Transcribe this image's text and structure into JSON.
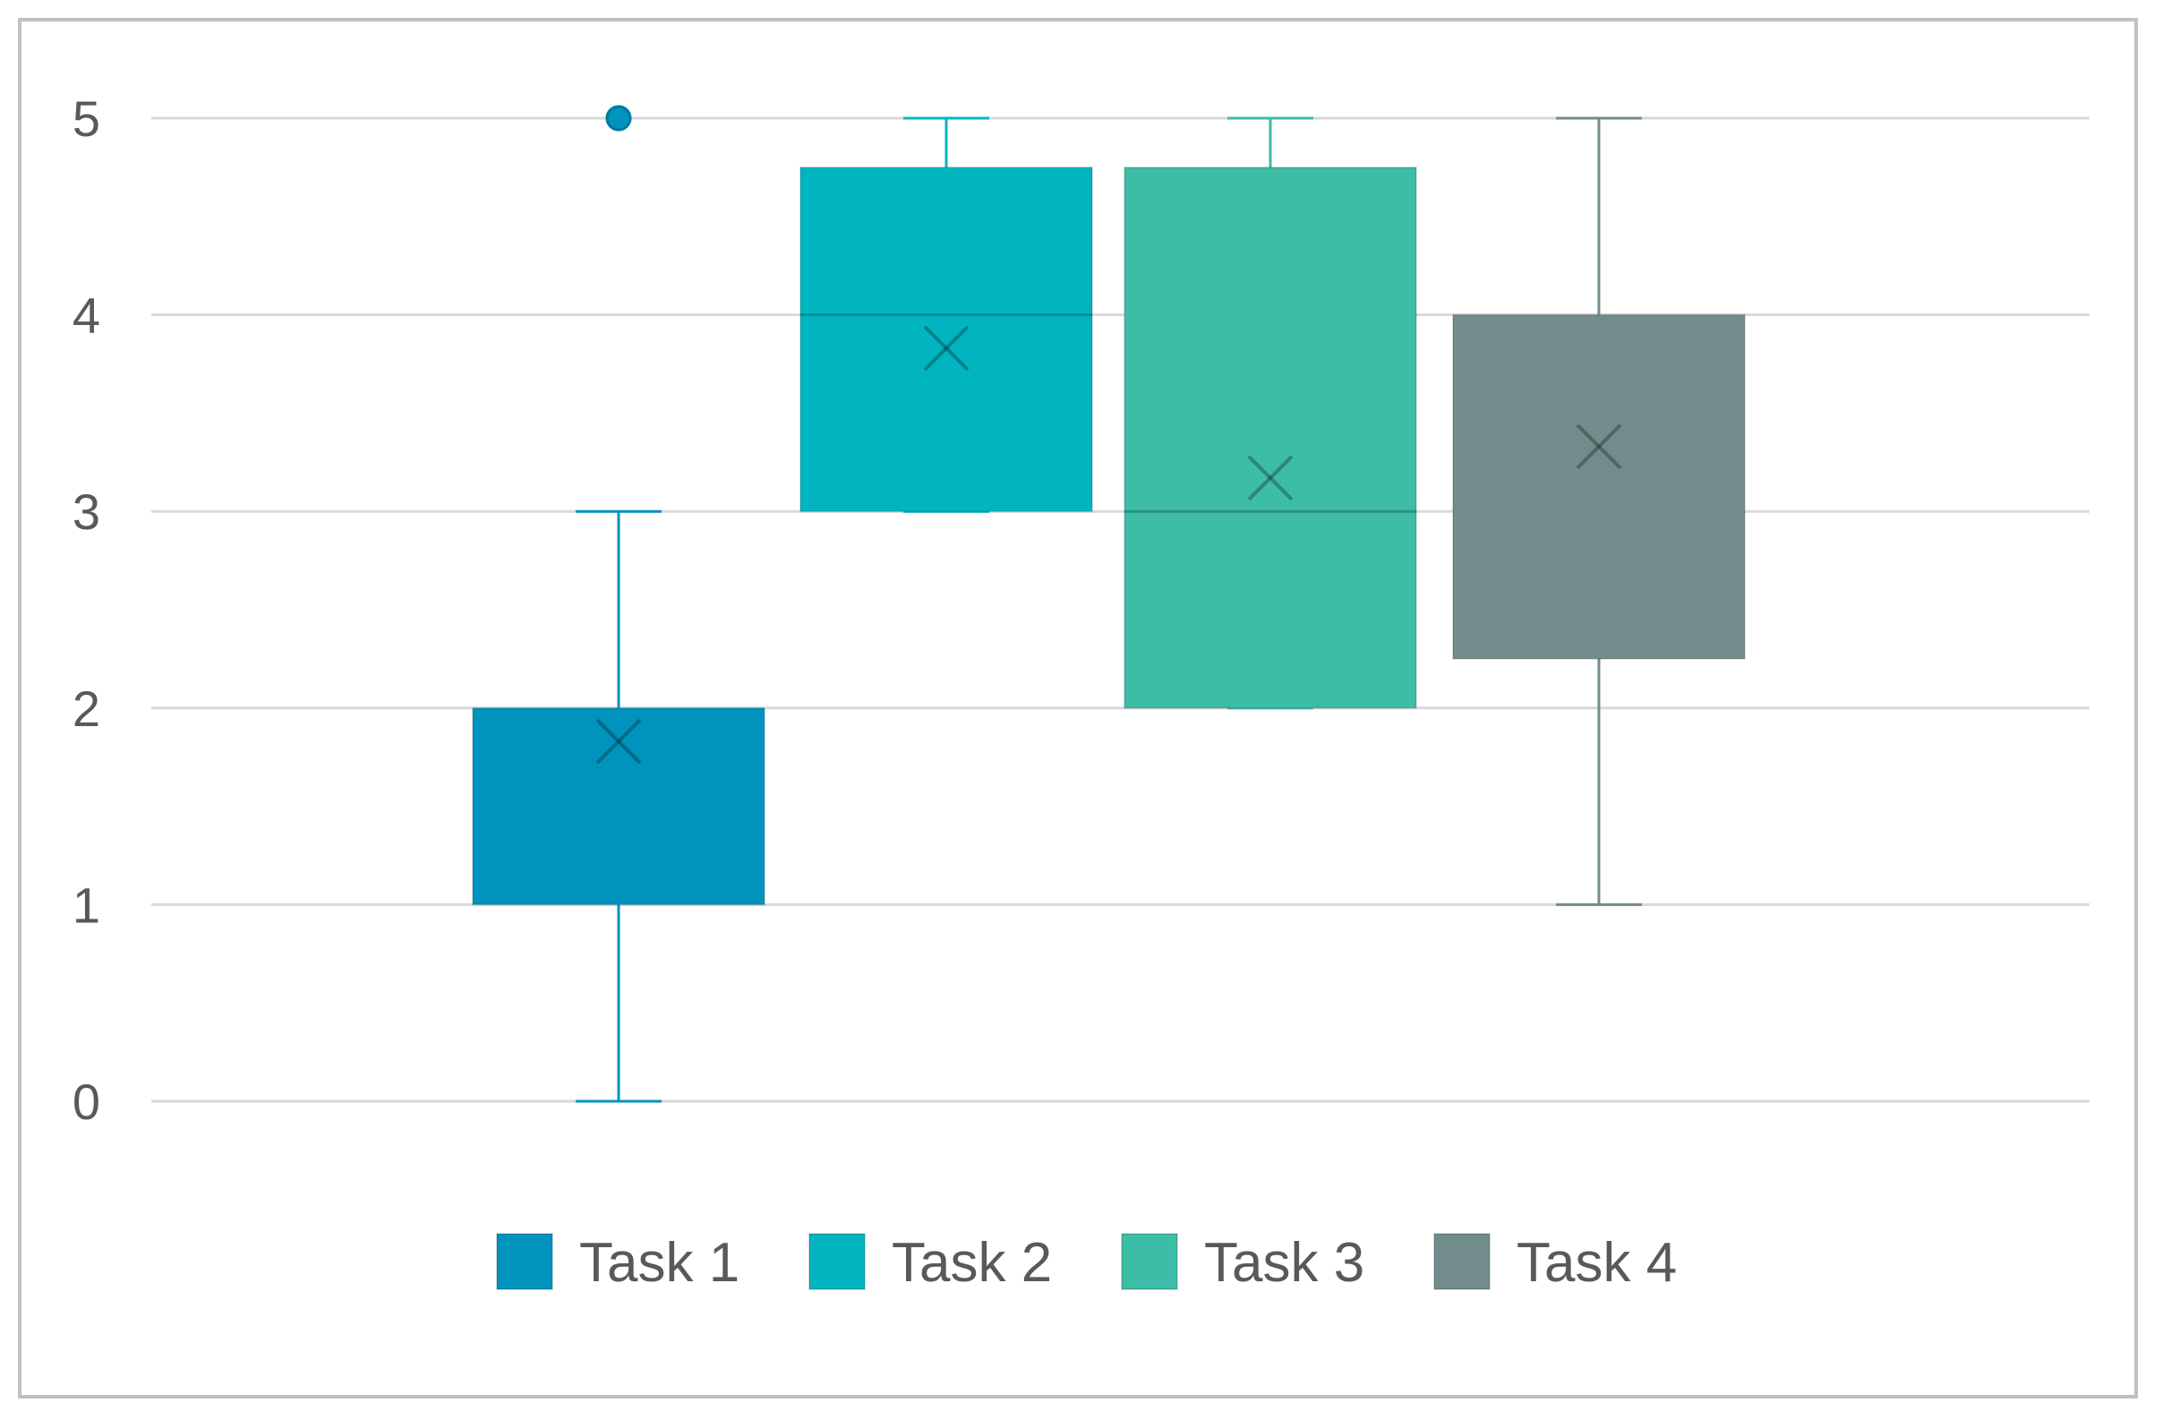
{
  "chart_data": {
    "type": "box",
    "title": "",
    "xlabel": "",
    "ylabel": "",
    "ylim": [
      0,
      5
    ],
    "yticks": [
      "0",
      "1",
      "2",
      "3",
      "4",
      "5"
    ],
    "grid": true,
    "legend_position": "bottom",
    "series": [
      {
        "name": "Task 1",
        "color": "#0093be",
        "min": 0,
        "q1": 1,
        "median": 2,
        "q3": 2,
        "max": 3,
        "mean": 1.83,
        "outliers": [
          5
        ]
      },
      {
        "name": "Task 2",
        "color": "#00b5c0",
        "min": 3,
        "q1": 3,
        "median": 4,
        "q3": 4.75,
        "max": 5,
        "mean": 3.83,
        "outliers": []
      },
      {
        "name": "Task 3",
        "color": "#3dbda6",
        "min": 2,
        "q1": 2,
        "median": 3,
        "q3": 4.75,
        "max": 5,
        "mean": 3.17,
        "outliers": []
      },
      {
        "name": "Task 4",
        "color": "#728b8b",
        "min": 1,
        "q1": 2.25,
        "median": 4,
        "q3": 4,
        "max": 5,
        "mean": 3.33,
        "outliers": []
      }
    ]
  }
}
